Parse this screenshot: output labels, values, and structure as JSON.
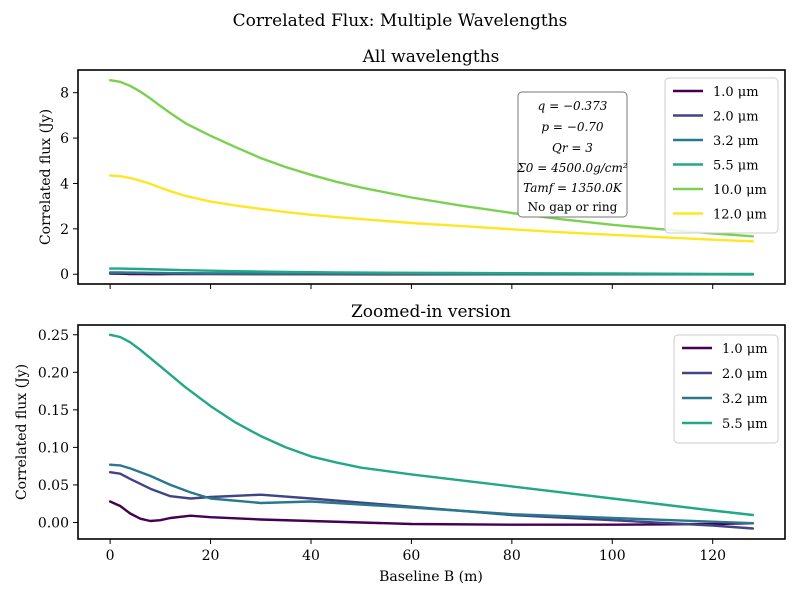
{
  "figure": {
    "suptitle": "Correlated Flux: Multiple Wavelengths"
  },
  "annotation": {
    "lines": [
      "q = −0.373",
      "p = −0.70",
      "Qr = 3",
      "Σ0 = 4500.0g/cm²",
      "Tamf = 1350.0K",
      "No gap or ring"
    ]
  },
  "colors": {
    "1.0": "#440154",
    "2.0": "#414487",
    "3.2": "#2a788e",
    "5.5": "#22a884",
    "10.0": "#7ad151",
    "12.0": "#fde725"
  },
  "chart_data": [
    {
      "type": "line",
      "title": "All wavelengths",
      "xlabel": "",
      "ylabel": "Correlated flux (Jy)",
      "xlim": [
        -6.4,
        134.4
      ],
      "ylim": [
        -0.43,
        9.0
      ],
      "yticks": [
        0,
        2,
        4,
        6,
        8
      ],
      "xticks": [
        0,
        20,
        40,
        60,
        80,
        100,
        120
      ],
      "xtick_labels_visible": false,
      "legend": "top-right",
      "series": [
        {
          "name": "1.0 μm",
          "x": [
            0,
            2,
            4,
            6,
            8,
            10,
            12,
            16,
            20,
            30,
            40,
            60,
            80,
            100,
            120,
            128
          ],
          "values": [
            0.028,
            0.022,
            0.012,
            0.005,
            0.002,
            0.003,
            0.006,
            0.009,
            0.007,
            0.004,
            0.002,
            -0.002,
            -0.003,
            -0.003,
            -0.002,
            -0.001
          ]
        },
        {
          "name": "2.0 μm",
          "x": [
            0,
            2,
            4,
            8,
            12,
            16,
            20,
            30,
            40,
            60,
            80,
            100,
            120,
            128
          ],
          "values": [
            0.067,
            0.065,
            0.058,
            0.045,
            0.035,
            0.032,
            0.034,
            0.037,
            0.032,
            0.021,
            0.01,
            0.003,
            -0.004,
            -0.008
          ]
        },
        {
          "name": "3.2 μm",
          "x": [
            0,
            2,
            4,
            8,
            12,
            16,
            20,
            30,
            40,
            60,
            80,
            100,
            120,
            128
          ],
          "values": [
            0.077,
            0.076,
            0.072,
            0.062,
            0.05,
            0.04,
            0.032,
            0.026,
            0.028,
            0.02,
            0.011,
            0.006,
            0.001,
            -0.001
          ]
        },
        {
          "name": "5.5 μm",
          "x": [
            0,
            2,
            4,
            6,
            10,
            15,
            20,
            25,
            30,
            35,
            40,
            45,
            50,
            60,
            70,
            80,
            90,
            100,
            110,
            120,
            128
          ],
          "values": [
            0.25,
            0.247,
            0.24,
            0.23,
            0.208,
            0.18,
            0.155,
            0.133,
            0.115,
            0.1,
            0.088,
            0.08,
            0.073,
            0.064,
            0.056,
            0.048,
            0.04,
            0.032,
            0.024,
            0.016,
            0.01
          ]
        },
        {
          "name": "10.0 μm",
          "x": [
            0,
            2,
            4,
            6,
            8,
            10,
            12,
            15,
            20,
            25,
            30,
            35,
            40,
            45,
            50,
            60,
            70,
            80,
            90,
            100,
            110,
            120,
            128
          ],
          "values": [
            8.55,
            8.48,
            8.3,
            8.05,
            7.75,
            7.42,
            7.1,
            6.65,
            6.1,
            5.6,
            5.12,
            4.72,
            4.38,
            4.08,
            3.82,
            3.38,
            3.02,
            2.7,
            2.42,
            2.18,
            1.98,
            1.8,
            1.67
          ]
        },
        {
          "name": "12.0 μm",
          "x": [
            0,
            2,
            4,
            6,
            8,
            10,
            12,
            15,
            20,
            25,
            30,
            35,
            40,
            45,
            50,
            60,
            70,
            80,
            90,
            100,
            110,
            120,
            128
          ],
          "values": [
            4.35,
            4.32,
            4.24,
            4.12,
            3.98,
            3.82,
            3.66,
            3.45,
            3.2,
            3.03,
            2.88,
            2.74,
            2.62,
            2.52,
            2.43,
            2.26,
            2.12,
            1.98,
            1.85,
            1.74,
            1.63,
            1.52,
            1.45
          ]
        }
      ]
    },
    {
      "type": "line",
      "title": "Zoomed-in version",
      "xlabel": "Baseline B (m)",
      "ylabel": "Correlated flux (Jy)",
      "xlim": [
        -6.4,
        134.4
      ],
      "ylim": [
        -0.022,
        0.263
      ],
      "yticks": [
        0.0,
        0.05,
        0.1,
        0.15,
        0.2,
        0.25
      ],
      "ytick_labels": [
        "0.00",
        "0.05",
        "0.10",
        "0.15",
        "0.20",
        "0.25"
      ],
      "xticks": [
        0,
        20,
        40,
        60,
        80,
        100,
        120
      ],
      "legend": "top-right",
      "series": [
        {
          "name": "1.0 μm",
          "x": [
            0,
            2,
            4,
            6,
            8,
            10,
            12,
            16,
            20,
            30,
            40,
            60,
            80,
            100,
            120,
            128
          ],
          "values": [
            0.028,
            0.022,
            0.012,
            0.005,
            0.002,
            0.003,
            0.006,
            0.009,
            0.007,
            0.004,
            0.002,
            -0.002,
            -0.003,
            -0.003,
            -0.002,
            -0.001
          ]
        },
        {
          "name": "2.0 μm",
          "x": [
            0,
            2,
            4,
            8,
            12,
            16,
            20,
            30,
            40,
            60,
            80,
            100,
            120,
            128
          ],
          "values": [
            0.067,
            0.065,
            0.058,
            0.045,
            0.035,
            0.032,
            0.034,
            0.037,
            0.032,
            0.021,
            0.01,
            0.003,
            -0.004,
            -0.008
          ]
        },
        {
          "name": "3.2 μm",
          "x": [
            0,
            2,
            4,
            8,
            12,
            16,
            20,
            30,
            40,
            60,
            80,
            100,
            120,
            128
          ],
          "values": [
            0.077,
            0.076,
            0.072,
            0.062,
            0.05,
            0.04,
            0.032,
            0.026,
            0.028,
            0.02,
            0.011,
            0.006,
            0.001,
            -0.001
          ]
        },
        {
          "name": "5.5 μm",
          "x": [
            0,
            2,
            4,
            6,
            10,
            15,
            20,
            25,
            30,
            35,
            40,
            45,
            50,
            60,
            70,
            80,
            90,
            100,
            110,
            120,
            128
          ],
          "values": [
            0.25,
            0.247,
            0.24,
            0.23,
            0.208,
            0.18,
            0.155,
            0.133,
            0.115,
            0.1,
            0.088,
            0.08,
            0.073,
            0.064,
            0.056,
            0.048,
            0.04,
            0.032,
            0.024,
            0.016,
            0.01
          ]
        }
      ]
    }
  ]
}
